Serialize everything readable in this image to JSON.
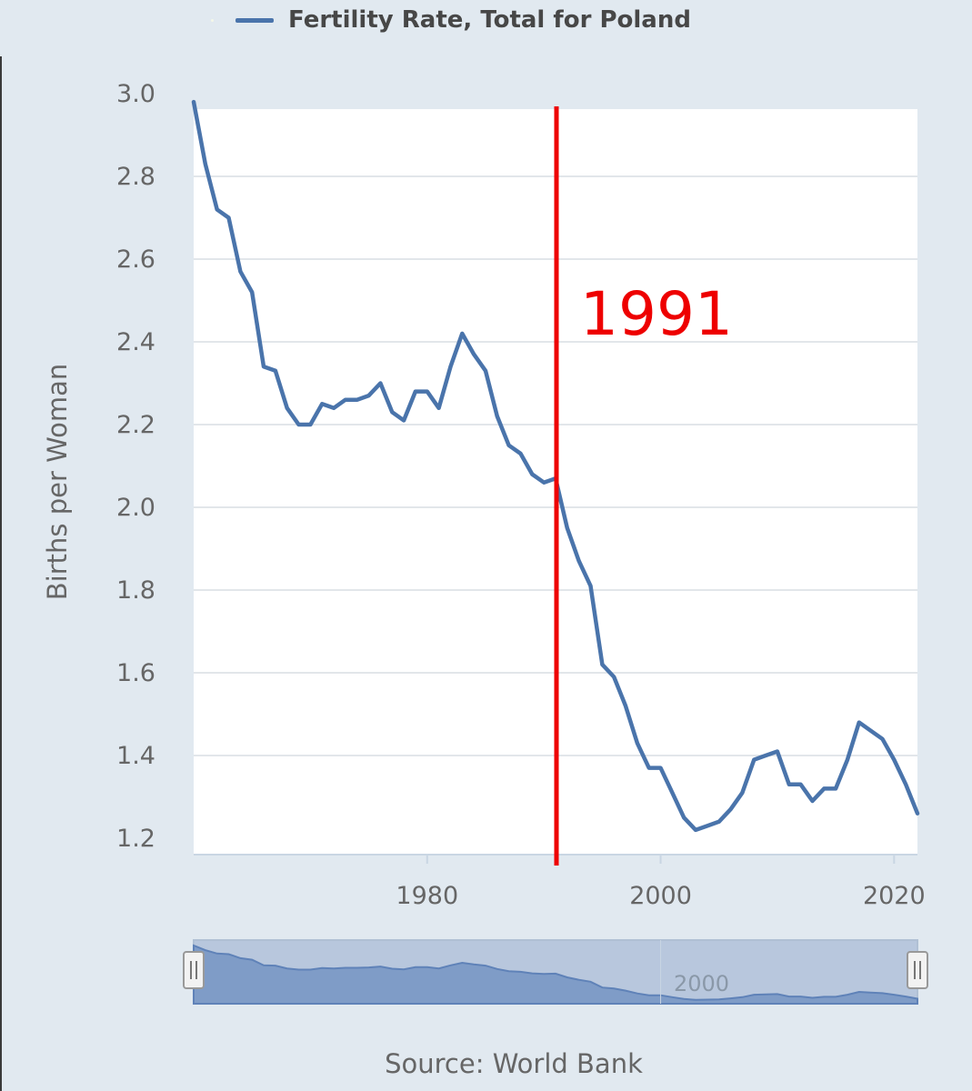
{
  "legend": {
    "label": "Fertility Rate, Total for Poland"
  },
  "source": "Source: World Bank",
  "colors": {
    "series": "#4a74ab",
    "annotation": "#ee0000",
    "background": "#e1e9f0",
    "plot": "#ffffff"
  },
  "navigator": {
    "label": "2000",
    "left_handle_icon": "grip-icon",
    "right_handle_icon": "grip-icon"
  },
  "chart_data": {
    "type": "line",
    "title": "",
    "xlabel": "",
    "ylabel": "Births per Woman",
    "xlim": [
      1960,
      2022
    ],
    "ylim": [
      1.2,
      3.0
    ],
    "yticks": [
      "3.0",
      "2.8",
      "2.6",
      "2.4",
      "2.2",
      "2.0",
      "1.8",
      "1.6",
      "1.4",
      "1.2"
    ],
    "xticks": [
      "1980",
      "2000",
      "2020"
    ],
    "grid": true,
    "legend_position": "top-left",
    "series": [
      {
        "name": "Fertility Rate, Total for Poland",
        "x": [
          1960,
          1961,
          1962,
          1963,
          1964,
          1965,
          1966,
          1967,
          1968,
          1969,
          1970,
          1971,
          1972,
          1973,
          1974,
          1975,
          1976,
          1977,
          1978,
          1979,
          1980,
          1981,
          1982,
          1983,
          1984,
          1985,
          1986,
          1987,
          1988,
          1989,
          1990,
          1991,
          1992,
          1993,
          1994,
          1995,
          1996,
          1997,
          1998,
          1999,
          2000,
          2001,
          2002,
          2003,
          2004,
          2005,
          2006,
          2007,
          2008,
          2009,
          2010,
          2011,
          2012,
          2013,
          2014,
          2015,
          2016,
          2017,
          2018,
          2019,
          2020,
          2021,
          2022
        ],
        "y": [
          2.98,
          2.83,
          2.72,
          2.7,
          2.57,
          2.52,
          2.34,
          2.33,
          2.24,
          2.2,
          2.2,
          2.25,
          2.24,
          2.26,
          2.26,
          2.27,
          2.3,
          2.23,
          2.21,
          2.28,
          2.28,
          2.24,
          2.34,
          2.42,
          2.37,
          2.33,
          2.22,
          2.15,
          2.13,
          2.08,
          2.06,
          2.07,
          1.95,
          1.87,
          1.81,
          1.62,
          1.59,
          1.52,
          1.43,
          1.37,
          1.37,
          1.31,
          1.25,
          1.22,
          1.23,
          1.24,
          1.27,
          1.31,
          1.39,
          1.4,
          1.41,
          1.33,
          1.33,
          1.29,
          1.32,
          1.32,
          1.39,
          1.48,
          1.46,
          1.44,
          1.39,
          1.33,
          1.26
        ]
      }
    ],
    "annotations": [
      {
        "type": "vertical-line",
        "x": 1991,
        "label": "1991"
      }
    ]
  }
}
